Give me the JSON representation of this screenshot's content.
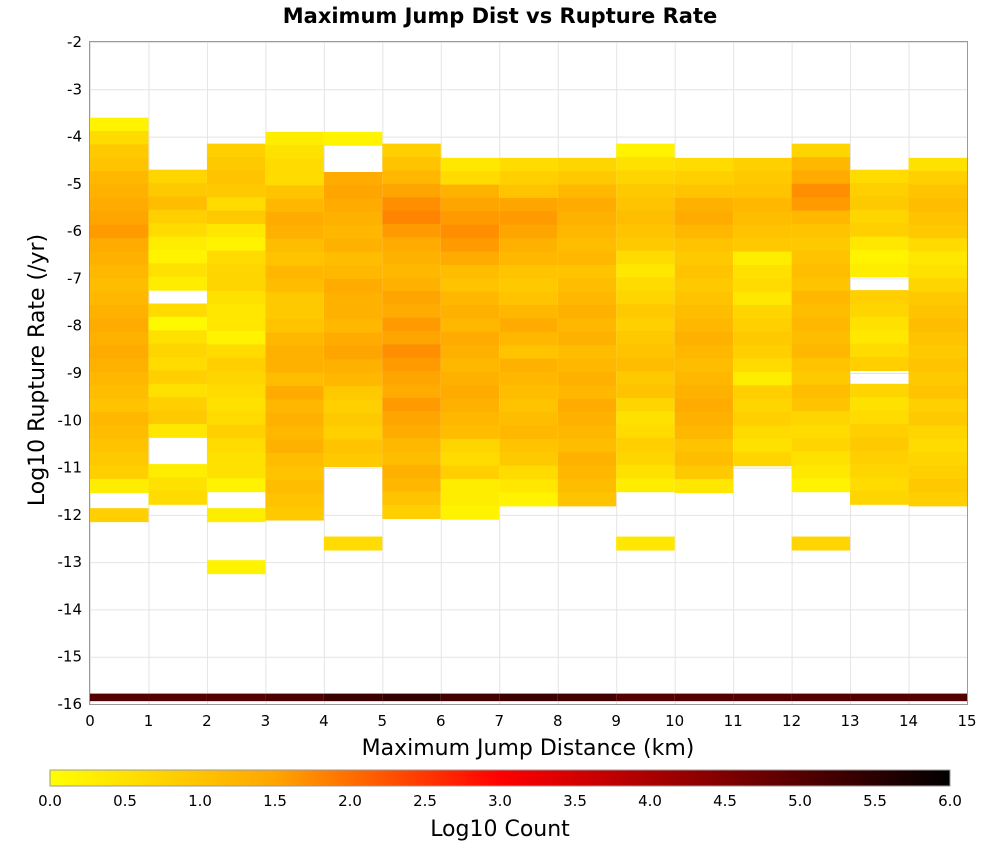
{
  "chart_data": {
    "type": "heatmap",
    "title": "Maximum Jump Dist vs Rupture Rate",
    "xlabel": "Maximum Jump Distance (km)",
    "ylabel": "Log10 Rupture Rate (/yr)",
    "xlim": [
      0,
      15
    ],
    "ylim": [
      -16,
      -2
    ],
    "x_ticks": [
      "0",
      "1",
      "2",
      "3",
      "4",
      "5",
      "6",
      "7",
      "8",
      "9",
      "10",
      "11",
      "12",
      "13",
      "14",
      "15"
    ],
    "y_ticks": [
      "-2",
      "-3",
      "-4",
      "-5",
      "-6",
      "-7",
      "-8",
      "-9",
      "-10",
      "-11",
      "-12",
      "-13",
      "-14",
      "-15",
      "-16"
    ],
    "x_bin_width": 1,
    "y_bin_height": 0.283,
    "y_bin_origin": -16,
    "grid": true,
    "colorbar": {
      "label": "Log10 Count",
      "range": [
        0,
        6
      ],
      "ticks": [
        "0.0",
        "0.5",
        "1.0",
        "1.5",
        "2.0",
        "2.5",
        "3.0",
        "3.5",
        "4.0",
        "4.5",
        "5.0",
        "5.5",
        "6.0"
      ],
      "stops": [
        "#ffff00",
        "#ffa500",
        "#ff0000",
        "#000000"
      ]
    },
    "total_row": {
      "y": -15.86,
      "values": [
        5.0,
        5.0,
        5.0,
        5.1,
        5.3,
        5.4,
        5.2,
        5.3,
        5.2,
        5.0,
        5.0,
        5.0,
        5.0,
        5.0,
        5.0
      ]
    },
    "columns": [
      {
        "x": 0,
        "ymax": -3.6,
        "extra": [
          [
            -12.0,
            0.8
          ]
        ],
        "gaps": [],
        "values": [
          0.2,
          0.6,
          0.9,
          1.0,
          1.2,
          1.3,
          1.4,
          1.5,
          1.6,
          1.4,
          1.3,
          1.2,
          1.1,
          1.2,
          1.3,
          1.4,
          1.3,
          1.4,
          1.3,
          1.2,
          1.1,
          1.0,
          1.2,
          1.1,
          1.0,
          0.9,
          0.8,
          0.3
        ]
      },
      {
        "x": 1,
        "ymax": -4.7,
        "extra": [],
        "gaps": [
          -7.5,
          -10.4,
          -10.9
        ],
        "values": [
          0.7,
          0.9,
          1.1,
          0.8,
          0.6,
          0.3,
          0.2,
          0.5,
          0.3,
          0.2,
          0.6,
          0.1,
          0.5,
          0.7,
          0.6,
          0.8,
          0.5,
          0.8,
          0.9,
          0.4,
          0.5,
          0.4,
          0.3,
          0.5,
          0.6
        ]
      },
      {
        "x": 2,
        "ymax": -4.15,
        "extra": [
          [
            -12.0,
            0.3
          ],
          [
            -13.1,
            0.2
          ]
        ],
        "gaps": [],
        "values": [
          0.8,
          0.9,
          1.0,
          0.9,
          0.6,
          0.9,
          0.4,
          0.2,
          0.6,
          0.7,
          0.7,
          0.5,
          0.4,
          0.4,
          0.2,
          0.6,
          0.8,
          0.7,
          0.6,
          0.5,
          0.6,
          0.8,
          0.6,
          0.5,
          0.5,
          0.2
        ]
      },
      {
        "x": 3,
        "ymax": -3.9,
        "extra": [],
        "gaps": [],
        "values": [
          0.3,
          0.5,
          0.6,
          0.6,
          1.0,
          1.2,
          1.4,
          1.3,
          1.1,
          1.0,
          1.2,
          1.1,
          0.9,
          0.9,
          1.0,
          1.2,
          1.3,
          1.3,
          1.1,
          1.4,
          1.2,
          1.3,
          1.2,
          1.3,
          1.1,
          1.0,
          1.1,
          1.0,
          0.9
        ]
      },
      {
        "x": 4,
        "ymax": -3.9,
        "extra": [
          [
            -12.6,
            0.6
          ]
        ],
        "gaps": [
          -4.2,
          -4.5
        ],
        "values": [
          0.2,
          1.0,
          1.1,
          1.4,
          1.5,
          1.4,
          1.3,
          1.2,
          1.3,
          1.1,
          1.2,
          1.4,
          1.3,
          1.3,
          1.2,
          1.4,
          1.5,
          1.3,
          1.2,
          0.9,
          0.8,
          0.9,
          0.8,
          1.0,
          0.9
        ]
      },
      {
        "x": 5,
        "ymax": -4.15,
        "extra": [],
        "gaps": [],
        "values": [
          0.8,
          1.0,
          1.2,
          1.5,
          1.7,
          1.8,
          1.6,
          1.4,
          1.3,
          1.2,
          1.3,
          1.5,
          1.4,
          1.6,
          1.5,
          1.7,
          1.6,
          1.5,
          1.4,
          1.6,
          1.5,
          1.4,
          1.2,
          1.1,
          1.3,
          1.2,
          1.0,
          0.8
        ]
      },
      {
        "x": 6,
        "ymax": -4.45,
        "extra": [],
        "gaps": [],
        "values": [
          0.4,
          0.6,
          1.3,
          1.5,
          1.6,
          1.7,
          1.6,
          1.4,
          1.1,
          1.0,
          1.2,
          1.3,
          1.2,
          1.4,
          1.3,
          1.2,
          1.3,
          1.4,
          1.3,
          1.2,
          1.1,
          0.7,
          0.6,
          0.8,
          0.3,
          0.3,
          0.2
        ]
      },
      {
        "x": 7,
        "ymax": -4.45,
        "extra": [],
        "gaps": [],
        "values": [
          0.6,
          0.8,
          1.0,
          1.5,
          1.6,
          1.5,
          1.3,
          1.2,
          1.0,
          0.9,
          1.0,
          1.2,
          1.4,
          1.2,
          1.0,
          1.3,
          1.2,
          1.1,
          1.0,
          1.1,
          1.2,
          1.0,
          0.9,
          0.6,
          0.4,
          0.2
        ]
      },
      {
        "x": 8,
        "ymax": -4.45,
        "extra": [],
        "gaps": [],
        "values": [
          0.7,
          0.9,
          1.2,
          1.4,
          1.3,
          1.2,
          1.1,
          1.2,
          1.0,
          1.1,
          1.2,
          1.3,
          1.2,
          1.3,
          1.1,
          1.2,
          1.3,
          1.2,
          1.4,
          1.3,
          1.2,
          1.1,
          1.3,
          1.2,
          1.1,
          1.0
        ]
      },
      {
        "x": 9,
        "ymax": -4.15,
        "extra": [
          [
            -12.6,
            0.4
          ]
        ],
        "gaps": [
          -11.7
        ],
        "values": [
          0.2,
          0.5,
          0.7,
          0.9,
          1.0,
          1.1,
          1.0,
          0.9,
          0.6,
          0.4,
          0.6,
          0.7,
          0.9,
          0.8,
          0.9,
          1.0,
          1.1,
          0.9,
          1.0,
          0.7,
          0.5,
          0.6,
          0.8,
          0.7,
          0.5,
          0.3
        ]
      },
      {
        "x": 10,
        "ymax": -4.45,
        "extra": [],
        "gaps": [],
        "values": [
          0.6,
          0.8,
          1.0,
          1.3,
          1.4,
          1.2,
          1.0,
          0.9,
          1.0,
          0.9,
          1.0,
          1.1,
          1.2,
          1.3,
          1.2,
          1.1,
          1.2,
          1.3,
          1.4,
          1.3,
          1.2,
          1.0,
          1.1,
          0.9,
          0.4
        ]
      },
      {
        "x": 11,
        "ymax": -4.45,
        "extra": [],
        "gaps": [],
        "values": [
          0.8,
          0.9,
          1.0,
          1.2,
          1.1,
          1.0,
          0.9,
          0.3,
          0.5,
          0.6,
          0.4,
          0.7,
          0.8,
          0.9,
          0.8,
          0.6,
          0.3,
          0.8,
          0.7,
          0.8,
          0.6,
          0.5,
          0.7
        ]
      },
      {
        "x": 12,
        "ymax": -4.15,
        "extra": [
          [
            -12.6,
            0.7
          ]
        ],
        "gaps": [],
        "values": [
          0.7,
          1.2,
          1.4,
          1.7,
          1.6,
          1.2,
          1.0,
          0.9,
          1.0,
          1.1,
          1.0,
          1.2,
          1.1,
          1.2,
          1.1,
          1.2,
          1.0,
          0.9,
          1.1,
          1.0,
          0.7,
          0.6,
          0.7,
          0.5,
          0.4,
          0.2
        ]
      },
      {
        "x": 13,
        "ymax": -4.7,
        "extra": [],
        "gaps": [
          -7.2,
          -9.1
        ],
        "values": [
          0.6,
          0.8,
          0.9,
          0.7,
          0.8,
          0.4,
          0.2,
          0.3,
          0.6,
          0.8,
          0.7,
          0.5,
          0.4,
          0.6,
          0.8,
          0.6,
          0.7,
          0.5,
          0.6,
          0.8,
          0.9,
          0.8,
          0.7,
          0.6,
          0.7
        ]
      },
      {
        "x": 14,
        "ymax": -4.45,
        "extra": [],
        "gaps": [],
        "values": [
          0.5,
          0.8,
          1.0,
          1.1,
          1.0,
          0.9,
          0.6,
          0.4,
          0.5,
          0.7,
          0.9,
          1.0,
          1.1,
          1.0,
          0.9,
          1.0,
          0.9,
          1.0,
          0.8,
          0.9,
          0.7,
          0.6,
          0.7,
          0.8,
          0.9,
          0.8
        ]
      }
    ]
  }
}
